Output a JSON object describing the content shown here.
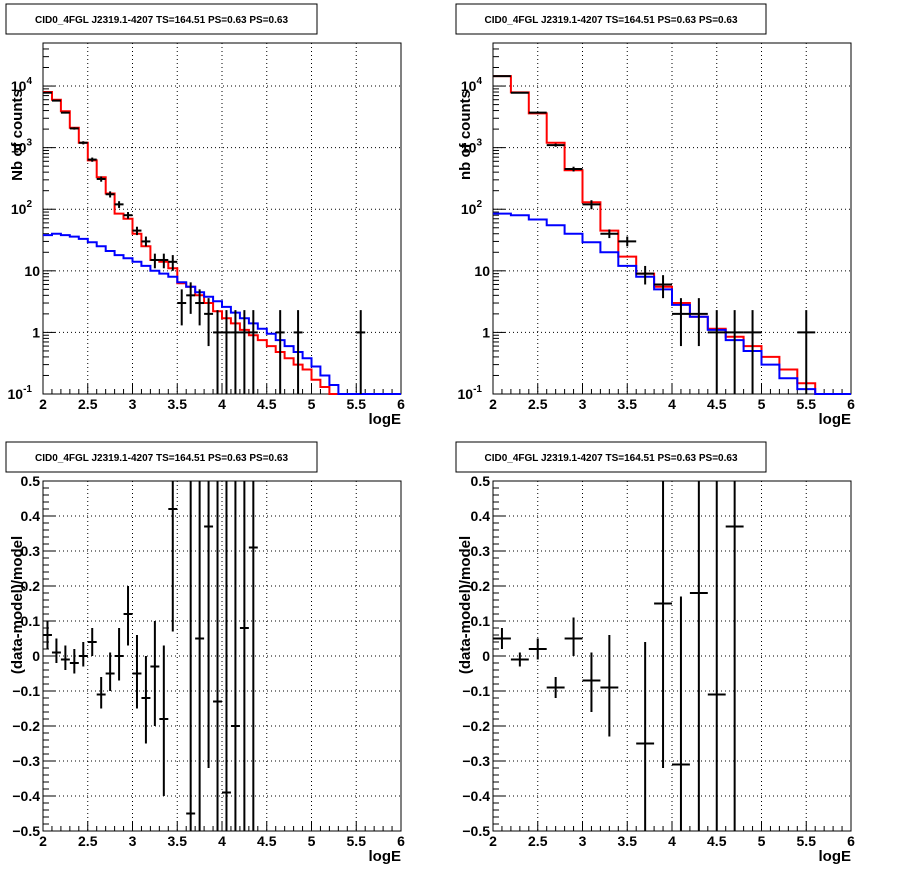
{
  "chart_data": [
    {
      "type": "step",
      "title": "CID0_4FGL J2319.1-4207 TS=164.51 PS=0.63 PS=0.63",
      "xlabel": "logE",
      "ylabel": "Nb of counts",
      "xlim": [
        2,
        6
      ],
      "ylim": [
        0.1,
        50000
      ],
      "yscale": "log",
      "grid": true,
      "xticks": [
        "2",
        "2.5",
        "3",
        "3.5",
        "4",
        "4.5",
        "5",
        "5.5",
        "6"
      ],
      "yticks": [
        {
          "v": 0.1,
          "label": "10",
          "exp": "-1"
        },
        {
          "v": 1,
          "label": "1",
          "exp": ""
        },
        {
          "v": 10,
          "label": "10",
          "exp": ""
        },
        {
          "v": 100,
          "label": "10",
          "exp": "2"
        },
        {
          "v": 1000,
          "label": "10",
          "exp": "3"
        },
        {
          "v": 10000,
          "label": "10",
          "exp": "4"
        }
      ],
      "bin_width": 0.1,
      "series": [
        {
          "color": "#ff0000",
          "x0": 2.0,
          "values": [
            8000,
            6000,
            3900,
            2100,
            1200,
            620,
            330,
            180,
            85,
            70,
            40,
            25,
            15,
            14,
            11,
            6.3,
            5.5,
            4.0,
            3.0,
            2.2,
            1.7,
            1.4,
            1.1,
            0.9,
            0.75,
            0.6,
            0.48,
            0.38,
            0.3,
            0.25,
            0.17,
            0.13,
            0.1,
            0.1,
            0.1,
            0.1,
            0.1,
            0.1,
            0.1,
            0.1
          ]
        },
        {
          "color": "#0000ff",
          "x0": 2.0,
          "values": [
            38,
            40,
            38,
            36,
            33,
            29,
            25,
            21,
            18,
            16,
            14,
            12,
            10,
            9,
            8,
            6.5,
            5.5,
            4.5,
            3.8,
            3.2,
            2.6,
            2.1,
            1.7,
            1.4,
            1.15,
            0.95,
            0.75,
            0.6,
            0.48,
            0.38,
            0.28,
            0.2,
            0.14,
            0.1,
            0.1,
            0.1,
            0.1,
            0.1,
            0.1,
            0.1
          ]
        }
      ],
      "points": [
        {
          "x": 2.05,
          "y": 7800,
          "lo": 7600,
          "hi": 8000
        },
        {
          "x": 2.15,
          "y": 5800,
          "lo": 5650,
          "hi": 5950
        },
        {
          "x": 2.25,
          "y": 3700,
          "lo": 3580,
          "hi": 3820
        },
        {
          "x": 2.35,
          "y": 2050,
          "lo": 1960,
          "hi": 2140
        },
        {
          "x": 2.45,
          "y": 1200,
          "lo": 1130,
          "hi": 1270
        },
        {
          "x": 2.55,
          "y": 640,
          "lo": 590,
          "hi": 690
        },
        {
          "x": 2.65,
          "y": 310,
          "lo": 280,
          "hi": 340
        },
        {
          "x": 2.75,
          "y": 175,
          "lo": 155,
          "hi": 195
        },
        {
          "x": 2.85,
          "y": 120,
          "lo": 105,
          "hi": 135
        },
        {
          "x": 2.95,
          "y": 80,
          "lo": 70,
          "hi": 90
        },
        {
          "x": 3.05,
          "y": 45,
          "lo": 38,
          "hi": 52
        },
        {
          "x": 3.15,
          "y": 30,
          "lo": 25,
          "hi": 36
        },
        {
          "x": 3.25,
          "y": 15,
          "lo": 11,
          "hi": 19
        },
        {
          "x": 3.35,
          "y": 15,
          "lo": 11,
          "hi": 19
        },
        {
          "x": 3.45,
          "y": 14,
          "lo": 10,
          "hi": 18
        },
        {
          "x": 3.55,
          "y": 3,
          "lo": 1.3,
          "hi": 5
        },
        {
          "x": 3.65,
          "y": 4,
          "lo": 2,
          "hi": 6.5
        },
        {
          "x": 3.75,
          "y": 3,
          "lo": 1.3,
          "hi": 5
        },
        {
          "x": 3.85,
          "y": 2,
          "lo": 0.6,
          "hi": 3.6
        },
        {
          "x": 3.95,
          "y": 1,
          "lo": 0.1,
          "hi": 2.3
        },
        {
          "x": 4.05,
          "y": 1,
          "lo": 0.1,
          "hi": 2.3
        },
        {
          "x": 4.15,
          "y": 1,
          "lo": 0.1,
          "hi": 2.3
        },
        {
          "x": 4.25,
          "y": 1,
          "lo": 0.1,
          "hi": 2.3
        },
        {
          "x": 4.35,
          "y": 1,
          "lo": 0.1,
          "hi": 2.3
        },
        {
          "x": 4.65,
          "y": 1,
          "lo": 0.1,
          "hi": 2.3
        },
        {
          "x": 4.85,
          "y": 1,
          "lo": 0.1,
          "hi": 2.3
        },
        {
          "x": 5.55,
          "y": 1,
          "lo": 0.1,
          "hi": 2.3
        }
      ],
      "point_xerr": 0.05
    },
    {
      "type": "step",
      "title": "CID0_4FGL J2319.1-4207 TS=164.51 PS=0.63 PS=0.63",
      "xlabel": "logE",
      "ylabel": "nb of counts",
      "xlim": [
        2,
        6
      ],
      "ylim": [
        0.1,
        50000
      ],
      "yscale": "log",
      "grid": true,
      "xticks": [
        "2",
        "2.5",
        "3",
        "3.5",
        "4",
        "4.5",
        "5",
        "5.5",
        "6"
      ],
      "yticks": [
        {
          "v": 0.1,
          "label": "10",
          "exp": "-1"
        },
        {
          "v": 1,
          "label": "1",
          "exp": ""
        },
        {
          "v": 10,
          "label": "10",
          "exp": ""
        },
        {
          "v": 100,
          "label": "10",
          "exp": "2"
        },
        {
          "v": 1000,
          "label": "10",
          "exp": "3"
        },
        {
          "v": 10000,
          "label": "10",
          "exp": "4"
        }
      ],
      "bin_width": 0.2,
      "series": [
        {
          "color": "#ff0000",
          "x0": 2.0,
          "values": [
            14500,
            7900,
            3600,
            1200,
            430,
            130,
            45,
            17,
            9,
            5.5,
            3,
            1.8,
            1.15,
            0.85,
            0.6,
            0.4,
            0.25,
            0.15,
            0.1,
            0.1
          ]
        },
        {
          "color": "#0000ff",
          "x0": 2.0,
          "values": [
            85,
            80,
            68,
            55,
            40,
            29,
            20,
            12,
            8,
            5,
            2.8,
            1.8,
            1.1,
            0.75,
            0.5,
            0.3,
            0.18,
            0.12,
            0.1,
            0.1
          ]
        }
      ],
      "points": [
        {
          "x": 2.1,
          "y": 14500,
          "lo": 14260,
          "hi": 14740
        },
        {
          "x": 2.3,
          "y": 7800,
          "lo": 7620,
          "hi": 7980
        },
        {
          "x": 2.5,
          "y": 3700,
          "lo": 3580,
          "hi": 3820
        },
        {
          "x": 2.7,
          "y": 1100,
          "lo": 1035,
          "hi": 1165
        },
        {
          "x": 2.9,
          "y": 450,
          "lo": 410,
          "hi": 490
        },
        {
          "x": 3.1,
          "y": 120,
          "lo": 100,
          "hi": 140
        },
        {
          "x": 3.3,
          "y": 40,
          "lo": 34,
          "hi": 47
        },
        {
          "x": 3.5,
          "y": 30,
          "lo": 25,
          "hi": 36
        },
        {
          "x": 3.7,
          "y": 9,
          "lo": 6,
          "hi": 12
        },
        {
          "x": 3.9,
          "y": 6,
          "lo": 3.6,
          "hi": 8.5
        },
        {
          "x": 4.1,
          "y": 2,
          "lo": 0.6,
          "hi": 3.6
        },
        {
          "x": 4.3,
          "y": 2,
          "lo": 0.6,
          "hi": 3.6
        },
        {
          "x": 4.5,
          "y": 1,
          "lo": 0.1,
          "hi": 2.3
        },
        {
          "x": 4.7,
          "y": 1,
          "lo": 0.1,
          "hi": 2.3
        },
        {
          "x": 4.9,
          "y": 1,
          "lo": 0.1,
          "hi": 2.3
        },
        {
          "x": 5.5,
          "y": 1,
          "lo": 0.1,
          "hi": 2.3
        }
      ],
      "point_xerr": 0.1
    },
    {
      "type": "scatter",
      "title": "CID0_4FGL J2319.1-4207 TS=164.51 PS=0.63 PS=0.63",
      "xlabel": "logE",
      "ylabel": "(data-model)/model",
      "xlim": [
        2,
        6
      ],
      "ylim": [
        -0.5,
        0.5
      ],
      "yscale": "linear",
      "grid": true,
      "xticks": [
        "2",
        "2.5",
        "3",
        "3.5",
        "4",
        "4.5",
        "5",
        "5.5",
        "6"
      ],
      "yticks": [
        {
          "v": -0.5,
          "label": "−0.5",
          "exp": ""
        },
        {
          "v": -0.4,
          "label": "−0.4",
          "exp": ""
        },
        {
          "v": -0.3,
          "label": "−0.3",
          "exp": ""
        },
        {
          "v": -0.2,
          "label": "−0.2",
          "exp": ""
        },
        {
          "v": -0.1,
          "label": "−0.1",
          "exp": ""
        },
        {
          "v": 0,
          "label": "0",
          "exp": ""
        },
        {
          "v": 0.1,
          "label": "0.1",
          "exp": ""
        },
        {
          "v": 0.2,
          "label": "0.2",
          "exp": ""
        },
        {
          "v": 0.3,
          "label": "0.3",
          "exp": ""
        },
        {
          "v": 0.4,
          "label": "0.4",
          "exp": ""
        },
        {
          "v": 0.5,
          "label": "0.5",
          "exp": ""
        }
      ],
      "points": [
        {
          "x": 2.05,
          "y": 0.06,
          "lo": 0.02,
          "hi": 0.1
        },
        {
          "x": 2.15,
          "y": 0.01,
          "lo": -0.02,
          "hi": 0.05
        },
        {
          "x": 2.25,
          "y": -0.01,
          "lo": -0.04,
          "hi": 0.03
        },
        {
          "x": 2.35,
          "y": -0.02,
          "lo": -0.05,
          "hi": 0.02
        },
        {
          "x": 2.45,
          "y": 0.0,
          "lo": -0.03,
          "hi": 0.04
        },
        {
          "x": 2.55,
          "y": 0.04,
          "lo": 0.0,
          "hi": 0.08
        },
        {
          "x": 2.65,
          "y": -0.11,
          "lo": -0.15,
          "hi": -0.06
        },
        {
          "x": 2.75,
          "y": -0.05,
          "lo": -0.1,
          "hi": 0.01
        },
        {
          "x": 2.85,
          "y": 0.0,
          "lo": -0.07,
          "hi": 0.08
        },
        {
          "x": 2.95,
          "y": 0.12,
          "lo": 0.03,
          "hi": 0.2
        },
        {
          "x": 3.05,
          "y": -0.05,
          "lo": -0.15,
          "hi": 0.06
        },
        {
          "x": 3.15,
          "y": -0.12,
          "lo": -0.25,
          "hi": 0.0
        },
        {
          "x": 3.25,
          "y": -0.03,
          "lo": -0.2,
          "hi": 0.1
        },
        {
          "x": 3.35,
          "y": -0.18,
          "lo": -0.4,
          "hi": 0.03
        },
        {
          "x": 3.45,
          "y": 0.42,
          "lo": 0.07,
          "hi": 0.5
        },
        {
          "x": 3.65,
          "y": -0.45,
          "lo": -0.5,
          "hi": 0.5
        },
        {
          "x": 3.75,
          "y": 0.05,
          "lo": -0.5,
          "hi": 0.5
        },
        {
          "x": 3.85,
          "y": 0.37,
          "lo": -0.32,
          "hi": 0.5
        },
        {
          "x": 3.95,
          "y": -0.13,
          "lo": -0.5,
          "hi": 0.5
        },
        {
          "x": 4.05,
          "y": -0.39,
          "lo": -0.5,
          "hi": 0.5
        },
        {
          "x": 4.15,
          "y": -0.2,
          "lo": -0.5,
          "hi": 0.5
        },
        {
          "x": 4.25,
          "y": 0.08,
          "lo": -0.5,
          "hi": 0.5
        },
        {
          "x": 4.35,
          "y": 0.31,
          "lo": -0.5,
          "hi": 0.5
        }
      ],
      "point_xerr": 0.05
    },
    {
      "type": "scatter",
      "title": "CID0_4FGL J2319.1-4207 TS=164.51 PS=0.63 PS=0.63",
      "xlabel": "logE",
      "ylabel": "(data-model)/model",
      "xlim": [
        2,
        6
      ],
      "ylim": [
        -0.5,
        0.5
      ],
      "yscale": "linear",
      "grid": true,
      "xticks": [
        "2",
        "2.5",
        "3",
        "3.5",
        "4",
        "4.5",
        "5",
        "5.5",
        "6"
      ],
      "yticks": [
        {
          "v": -0.5,
          "label": "−0.5",
          "exp": ""
        },
        {
          "v": -0.4,
          "label": "−0.4",
          "exp": ""
        },
        {
          "v": -0.3,
          "label": "−0.3",
          "exp": ""
        },
        {
          "v": -0.2,
          "label": "−0.2",
          "exp": ""
        },
        {
          "v": -0.1,
          "label": "−0.1",
          "exp": ""
        },
        {
          "v": 0,
          "label": "0",
          "exp": ""
        },
        {
          "v": 0.1,
          "label": "0.1",
          "exp": ""
        },
        {
          "v": 0.2,
          "label": "0.2",
          "exp": ""
        },
        {
          "v": 0.3,
          "label": "0.3",
          "exp": ""
        },
        {
          "v": 0.4,
          "label": "0.4",
          "exp": ""
        },
        {
          "v": 0.5,
          "label": "0.5",
          "exp": ""
        }
      ],
      "points": [
        {
          "x": 2.1,
          "y": 0.05,
          "lo": 0.02,
          "hi": 0.08
        },
        {
          "x": 2.3,
          "y": -0.01,
          "lo": -0.03,
          "hi": 0.01
        },
        {
          "x": 2.5,
          "y": 0.02,
          "lo": -0.01,
          "hi": 0.05
        },
        {
          "x": 2.7,
          "y": -0.09,
          "lo": -0.12,
          "hi": -0.06
        },
        {
          "x": 2.9,
          "y": 0.05,
          "lo": 0.0,
          "hi": 0.11
        },
        {
          "x": 3.1,
          "y": -0.07,
          "lo": -0.16,
          "hi": 0.01
        },
        {
          "x": 3.3,
          "y": -0.09,
          "lo": -0.23,
          "hi": 0.06
        },
        {
          "x": 3.7,
          "y": -0.25,
          "lo": -0.5,
          "hi": 0.04
        },
        {
          "x": 3.9,
          "y": 0.15,
          "lo": -0.32,
          "hi": 0.5
        },
        {
          "x": 4.1,
          "y": -0.31,
          "lo": -0.5,
          "hi": 0.17
        },
        {
          "x": 4.3,
          "y": 0.18,
          "lo": -0.5,
          "hi": 0.5
        },
        {
          "x": 4.5,
          "y": -0.11,
          "lo": -0.5,
          "hi": 0.5
        },
        {
          "x": 4.7,
          "y": 0.37,
          "lo": -0.5,
          "hi": 0.5
        }
      ],
      "point_xerr": 0.1
    }
  ]
}
